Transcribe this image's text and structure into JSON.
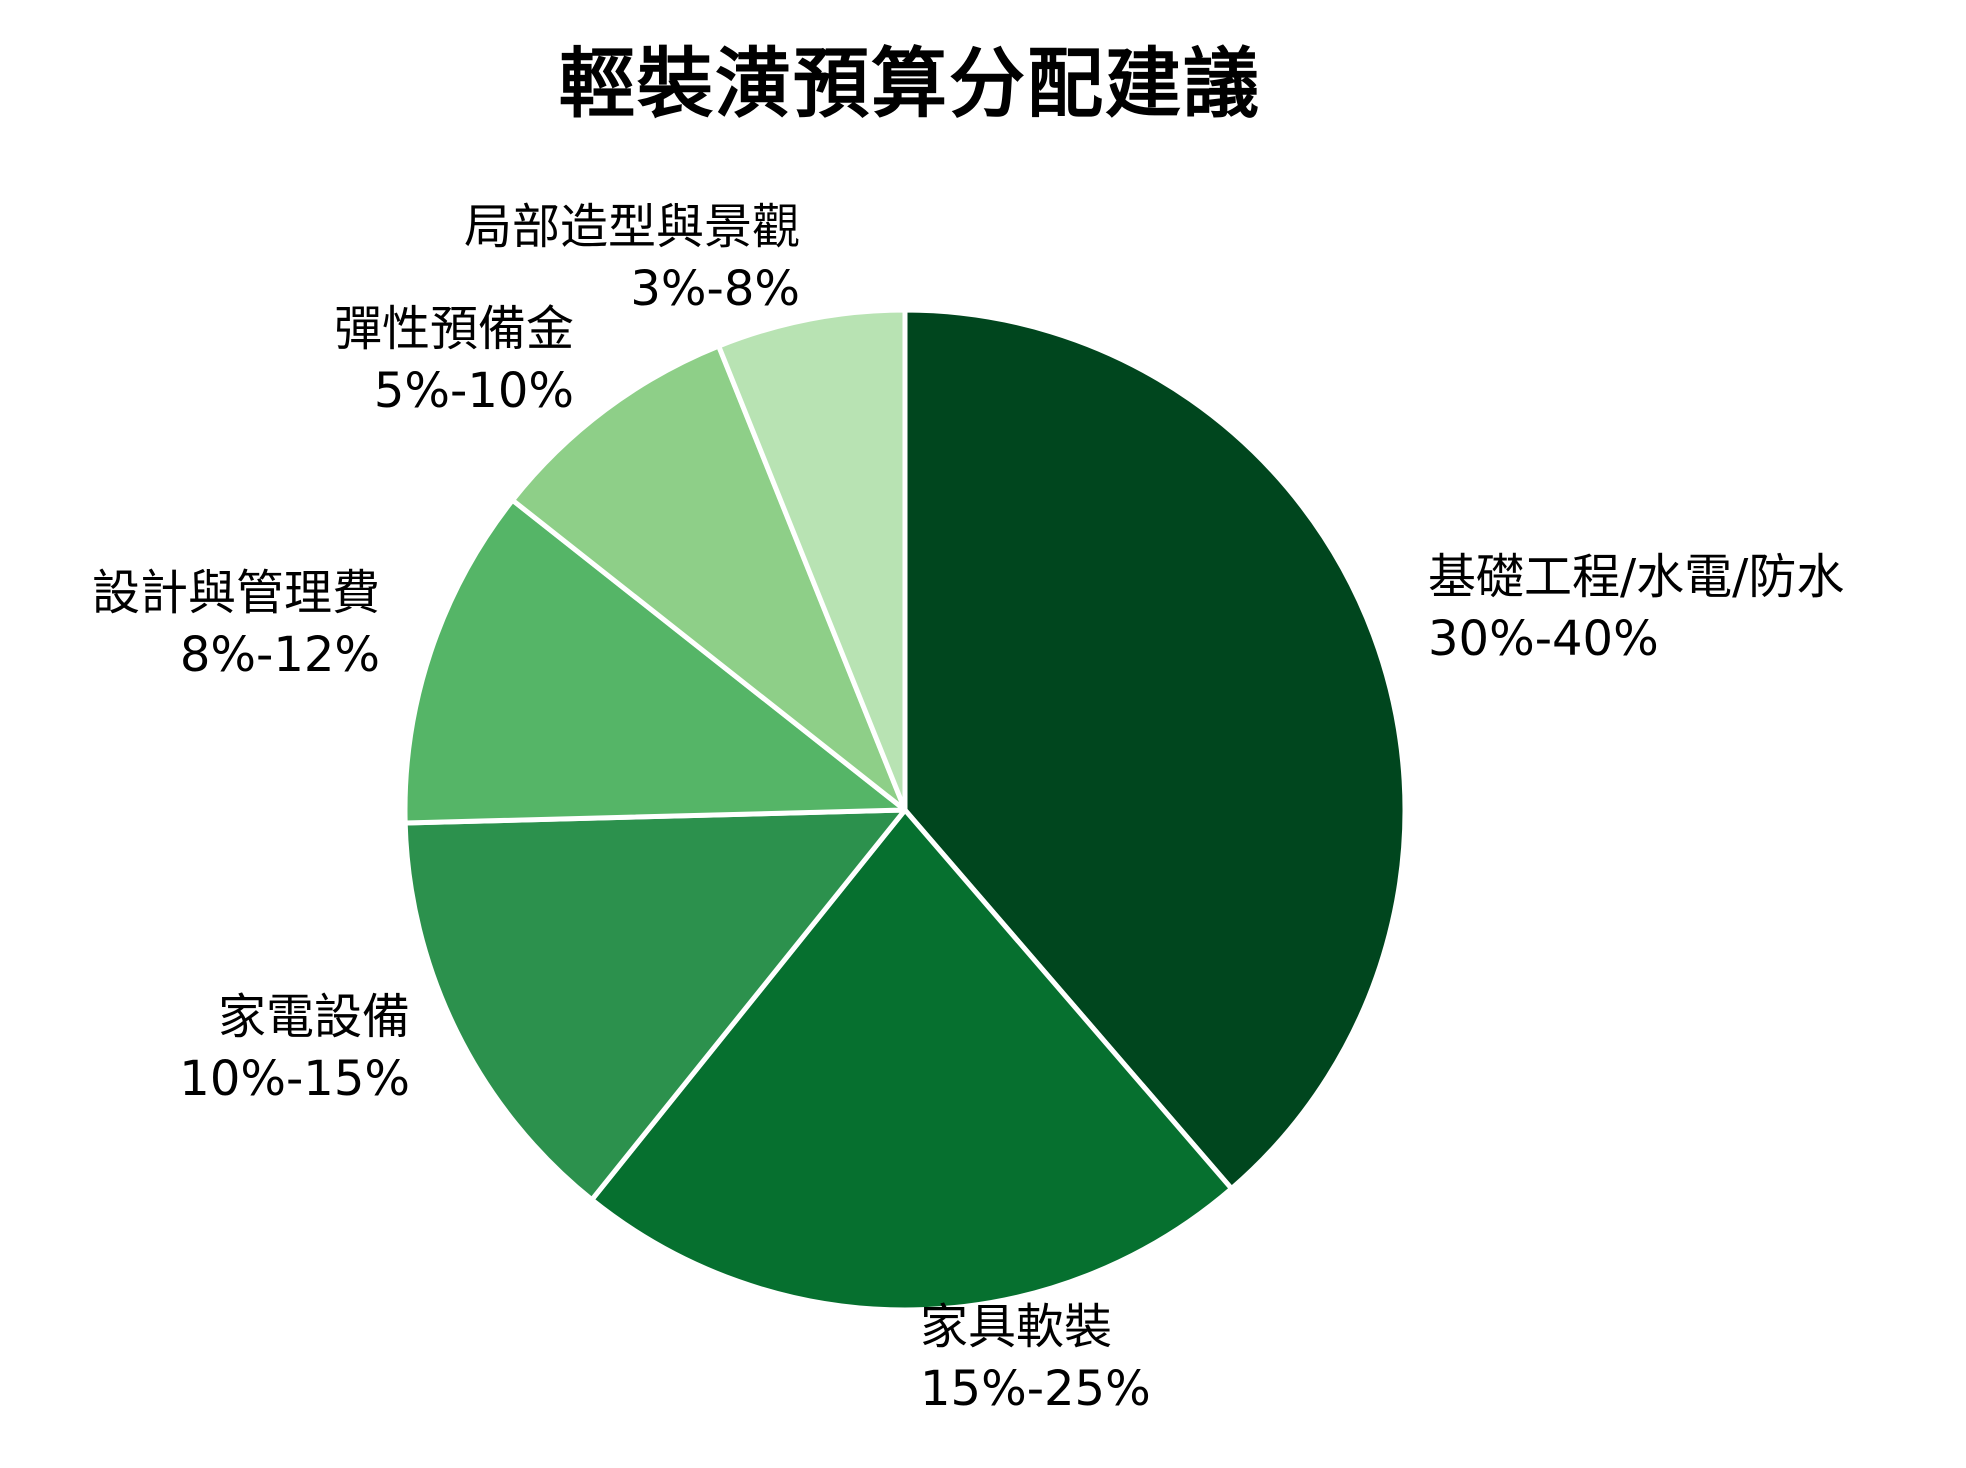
{
  "chart_data": {
    "type": "pie",
    "title": "輕裝潢預算分配建議",
    "start_angle_deg": 0,
    "direction": "clockwise",
    "categories": [
      "基礎工程/水電/防水",
      "家具軟裝",
      "家電設備",
      "設計與管理費",
      "彈性預備金",
      "局部造型與景觀"
    ],
    "ranges": [
      "30%-40%",
      "15%-25%",
      "10%-15%",
      "8%-12%",
      "5%-10%",
      "3%-8%"
    ],
    "values": [
      35,
      20,
      12.5,
      10,
      7.5,
      5.5
    ],
    "shares_pct": [
      38.7,
      22.1,
      13.8,
      11.0,
      8.3,
      6.1
    ],
    "colors": [
      "#00461e",
      "#06702f",
      "#2c914d",
      "#55b567",
      "#8ecf88",
      "#b8e3b3"
    ],
    "legend": "none",
    "slice_edge_color": "#ffffff"
  },
  "title": "輕裝潢預算分配建議",
  "labels": [
    {
      "name": "基礎工程/水電/防水",
      "range": "30%-40%"
    },
    {
      "name": "家具軟裝",
      "range": "15%-25%"
    },
    {
      "name": "家電設備",
      "range": "10%-15%"
    },
    {
      "name": "設計與管理費",
      "range": "8%-12%"
    },
    {
      "name": "彈性預備金",
      "range": "5%-10%"
    },
    {
      "name": "局部造型與景觀",
      "range": "3%-8%"
    }
  ]
}
